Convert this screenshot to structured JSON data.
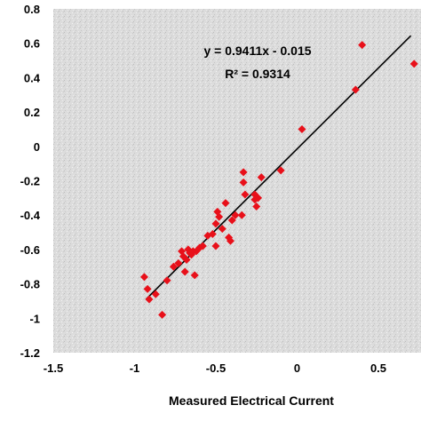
{
  "chart_data": {
    "type": "scatter",
    "title": "",
    "xlabel": "Measured Electrical Current",
    "ylabel": "",
    "xlim": [
      -1.5,
      0.75
    ],
    "ylim": [
      -1.2,
      0.8
    ],
    "x_ticks": [
      "-1.5",
      "-1",
      "-0.5",
      "0",
      "0.5"
    ],
    "y_ticks": [
      "0.8",
      "0.6",
      "0.4",
      "0.2",
      "0",
      "-0.2",
      "-0.4",
      "-0.6",
      "-0.8",
      "-1",
      "-1.2"
    ],
    "grid": false,
    "point_color": "#e8101a",
    "trendline_color": "#000000",
    "trendline": {
      "slope": 0.9411,
      "intercept": -0.015,
      "x_range": [
        -0.93,
        0.7
      ]
    },
    "annotations": [
      "y = 0.9411x - 0.015",
      "R² = 0.9314"
    ],
    "points": [
      {
        "x": -0.94,
        "y": -0.76
      },
      {
        "x": -0.92,
        "y": -0.83
      },
      {
        "x": -0.91,
        "y": -0.89
      },
      {
        "x": -0.87,
        "y": -0.86
      },
      {
        "x": -0.83,
        "y": -0.98
      },
      {
        "x": -0.8,
        "y": -0.78
      },
      {
        "x": -0.76,
        "y": -0.7
      },
      {
        "x": -0.73,
        "y": -0.68
      },
      {
        "x": -0.71,
        "y": -0.61
      },
      {
        "x": -0.7,
        "y": -0.64
      },
      {
        "x": -0.69,
        "y": -0.73
      },
      {
        "x": -0.68,
        "y": -0.66
      },
      {
        "x": -0.67,
        "y": -0.6
      },
      {
        "x": -0.66,
        "y": -0.62
      },
      {
        "x": -0.65,
        "y": -0.63
      },
      {
        "x": -0.64,
        "y": -0.61
      },
      {
        "x": -0.63,
        "y": -0.75
      },
      {
        "x": -0.62,
        "y": -0.61
      },
      {
        "x": -0.6,
        "y": -0.59
      },
      {
        "x": -0.58,
        "y": -0.58
      },
      {
        "x": -0.55,
        "y": -0.52
      },
      {
        "x": -0.52,
        "y": -0.51
      },
      {
        "x": -0.5,
        "y": -0.58
      },
      {
        "x": -0.5,
        "y": -0.45
      },
      {
        "x": -0.49,
        "y": -0.38
      },
      {
        "x": -0.48,
        "y": -0.41
      },
      {
        "x": -0.46,
        "y": -0.48
      },
      {
        "x": -0.44,
        "y": -0.33
      },
      {
        "x": -0.42,
        "y": -0.53
      },
      {
        "x": -0.41,
        "y": -0.55
      },
      {
        "x": -0.4,
        "y": -0.43
      },
      {
        "x": -0.38,
        "y": -0.4
      },
      {
        "x": -0.34,
        "y": -0.4
      },
      {
        "x": -0.33,
        "y": -0.15
      },
      {
        "x": -0.33,
        "y": -0.21
      },
      {
        "x": -0.32,
        "y": -0.28
      },
      {
        "x": -0.26,
        "y": -0.28
      },
      {
        "x": -0.26,
        "y": -0.31
      },
      {
        "x": -0.25,
        "y": -0.35
      },
      {
        "x": -0.24,
        "y": -0.3
      },
      {
        "x": -0.22,
        "y": -0.18
      },
      {
        "x": -0.1,
        "y": -0.14
      },
      {
        "x": 0.03,
        "y": 0.1
      },
      {
        "x": 0.36,
        "y": 0.33
      },
      {
        "x": 0.4,
        "y": 0.59
      },
      {
        "x": 0.72,
        "y": 0.48
      }
    ]
  }
}
